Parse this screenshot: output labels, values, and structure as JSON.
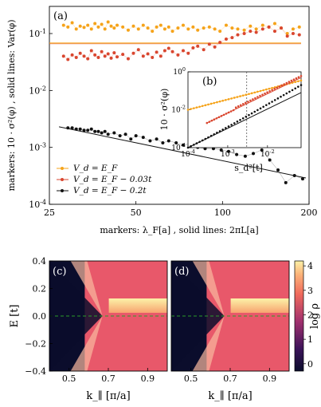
{
  "colors": {
    "orange": "#f5a31a",
    "red": "#d9462f",
    "black": "#111111",
    "heat_low": "#0b0d2c",
    "heat_mid": "#e8586a",
    "heat_high": "#fcf2a8",
    "dash": "#2a9d2a"
  },
  "chart_data": [
    {
      "panel": "(a)",
      "type": "scatter",
      "xscale": "log",
      "yscale": "log",
      "xlim": [
        25,
        200
      ],
      "ylim": [
        0.0001,
        0.3
      ],
      "xticks": [
        "25",
        "50",
        "100",
        "200"
      ],
      "yticks": [
        "10^{-4}",
        "10^{-3}",
        "10^{-2}",
        "10^{-1}"
      ],
      "xlabel": "markers: λ_F[a] ,  solid lines: 2πL[a]",
      "ylabel": "markers: 10 · σ²(φ) ,  solid lines: Var(φ)",
      "legend_position": "lower-left",
      "series": [
        {
          "name": "V_d = E_F",
          "color": "orange",
          "x": [
            28,
            29,
            30,
            31,
            32,
            33,
            34,
            35,
            36,
            37,
            38,
            39,
            40,
            41,
            42,
            43,
            45,
            47,
            49,
            51,
            53,
            55,
            57,
            59,
            61,
            63,
            65,
            67,
            70,
            73,
            76,
            79,
            82,
            86,
            90,
            94,
            98,
            103,
            108,
            113,
            119,
            125,
            131,
            138,
            145,
            152,
            160,
            168,
            176,
            185
          ],
          "y": [
            0.14,
            0.13,
            0.155,
            0.12,
            0.135,
            0.128,
            0.14,
            0.12,
            0.15,
            0.13,
            0.145,
            0.12,
            0.16,
            0.135,
            0.125,
            0.14,
            0.13,
            0.115,
            0.135,
            0.12,
            0.14,
            0.125,
            0.11,
            0.13,
            0.14,
            0.12,
            0.13,
            0.11,
            0.125,
            0.14,
            0.12,
            0.13,
            0.115,
            0.125,
            0.13,
            0.12,
            0.11,
            0.14,
            0.125,
            0.12,
            0.115,
            0.135,
            0.12,
            0.14,
            0.13,
            0.15,
            0.125,
            0.1,
            0.12,
            0.13
          ],
          "line_value": 0.068
        },
        {
          "name": "V_d = E_F − 0.03t",
          "color": "red",
          "x": [
            28,
            29,
            30,
            31,
            32,
            33,
            34,
            35,
            36,
            37,
            38,
            39,
            40,
            41,
            42,
            43,
            45,
            47,
            49,
            51,
            53,
            55,
            57,
            59,
            61,
            63,
            65,
            67,
            70,
            73,
            76,
            79,
            82,
            86,
            90,
            94,
            98,
            103,
            108,
            113,
            119,
            125,
            131,
            138,
            145,
            152,
            160,
            168,
            176,
            185
          ],
          "y": [
            0.04,
            0.035,
            0.042,
            0.038,
            0.045,
            0.04,
            0.036,
            0.05,
            0.042,
            0.038,
            0.048,
            0.04,
            0.044,
            0.037,
            0.046,
            0.039,
            0.043,
            0.036,
            0.045,
            0.052,
            0.04,
            0.044,
            0.038,
            0.047,
            0.04,
            0.05,
            0.055,
            0.048,
            0.042,
            0.05,
            0.045,
            0.056,
            0.06,
            0.052,
            0.065,
            0.058,
            0.07,
            0.08,
            0.085,
            0.095,
            0.1,
            0.11,
            0.105,
            0.12,
            0.13,
            0.11,
            0.125,
            0.09,
            0.1,
            0.095
          ],
          "line_value": 0.068
        },
        {
          "name": "V_d = E_F − 0.2t",
          "color": "black",
          "x": [
            29,
            30,
            31,
            32,
            33,
            34,
            35,
            36,
            37,
            38,
            39,
            40,
            42,
            44,
            46,
            48,
            50,
            53,
            56,
            59,
            62,
            65,
            69,
            73,
            77,
            82,
            87,
            93,
            99,
            105,
            112,
            120,
            128,
            137,
            146,
            156,
            166,
            178,
            190
          ],
          "y": [
            0.0022,
            0.0022,
            0.0021,
            0.0021,
            0.002,
            0.002,
            0.0021,
            0.0019,
            0.0019,
            0.0018,
            0.0019,
            0.0017,
            0.0018,
            0.0016,
            0.0017,
            0.0014,
            0.0016,
            0.0015,
            0.0013,
            0.0014,
            0.0012,
            0.0013,
            0.0012,
            0.0011,
            0.00115,
            0.001,
            0.00095,
            0.00095,
            0.0009,
            0.00085,
            0.00075,
            0.0007,
            0.00078,
            0.0009,
            0.0006,
            0.0004,
            0.00024,
            0.00032,
            0.00028
          ],
          "line_from": [
            27,
            0.0023
          ],
          "line_to": [
            195,
            0.00029
          ]
        }
      ]
    },
    {
      "panel": "(b)",
      "type": "scatter",
      "xscale": "log",
      "yscale": "log",
      "xlim": [
        0.0001,
        0.07
      ],
      "ylim": [
        0.0001,
        1
      ],
      "xticks": [
        "10^{-4}",
        "10^{-3}",
        "10^{-2}"
      ],
      "yticks": [
        "10^{-4}",
        "10^{-2}",
        "10^{0}"
      ],
      "xlabel": "s_d²[t]",
      "ylabel": "10 · σ²(φ)",
      "vline_x": 0.003,
      "series": [
        {
          "name": "V_d = E_F",
          "color": "orange",
          "x0": 0.0001,
          "y0": 0.01,
          "x1": 0.07,
          "y1": 0.35
        },
        {
          "name": "V_d = E_F − 0.03t",
          "color": "red",
          "x0": 0.0003,
          "y0": 0.002,
          "x1": 0.07,
          "y1": 0.5
        },
        {
          "name": "V_d = E_F − 0.2t",
          "color": "black",
          "x0": 0.0001,
          "y0": 0.0001,
          "x1": 0.07,
          "y1": 0.08
        }
      ]
    },
    {
      "panel": "(c)",
      "type": "heatmap",
      "xlim": [
        0.4,
        1.0
      ],
      "ylim": [
        -0.4,
        0.4
      ],
      "xticks": [
        "0.5",
        "0.7",
        "0.9"
      ],
      "yticks": [
        "−0.4",
        "−0.2",
        "0.0",
        "0.2",
        "0.4"
      ],
      "xlabel": "k_∥ [π/a]",
      "ylabel": "E [t]",
      "crossing_k": 0.67,
      "dashed_E": 0.0
    },
    {
      "panel": "(d)",
      "type": "heatmap",
      "xlim": [
        0.4,
        1.0
      ],
      "ylim": [
        -0.4,
        0.4
      ],
      "xticks": [
        "0.5",
        "0.7",
        "0.9"
      ],
      "xlabel": "k_∥ [π/a]",
      "crossing_k": 0.67,
      "dashed_E": 0.0
    }
  ],
  "colorbar": {
    "label": "log ρ",
    "ticks": [
      "0",
      "1",
      "2",
      "3",
      "4"
    ],
    "range": [
      -0.3,
      4.2
    ]
  }
}
